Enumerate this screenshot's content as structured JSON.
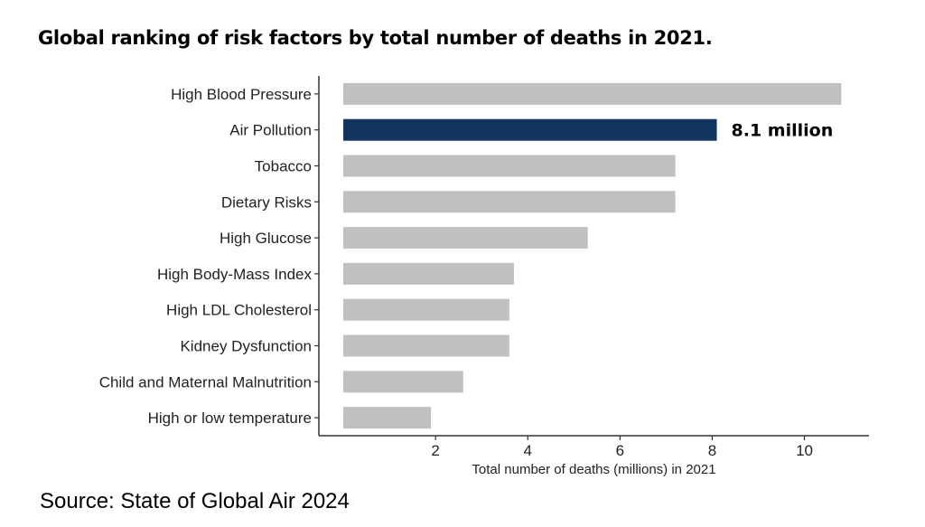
{
  "chart_data": {
    "type": "bar",
    "orientation": "horizontal",
    "title": "Global ranking of risk factors by total number of deaths in 2021.",
    "xlabel": "Total number of deaths (millions) in 2021",
    "ylabel": "",
    "categories": [
      "High Blood Pressure",
      "Air Pollution",
      "Tobacco",
      "Dietary Risks",
      "High Glucose",
      "High Body-Mass Index",
      "High LDL Cholesterol",
      "Kidney Dysfunction",
      "Child and Maternal Malnutrition",
      "High or low temperature"
    ],
    "values": [
      10.8,
      8.1,
      7.2,
      7.2,
      5.3,
      3.7,
      3.6,
      3.6,
      2.6,
      1.9
    ],
    "highlight": {
      "category": "Air Pollution",
      "label": "8.1 million",
      "color": "#12355f"
    },
    "bar_color": "#c0c0c0",
    "xticks": [
      2,
      4,
      6,
      8,
      10
    ],
    "xlim": [
      -0.53,
      11.4
    ],
    "grid": false,
    "legend": "none"
  },
  "source": "Source: State of Global Air 2024"
}
